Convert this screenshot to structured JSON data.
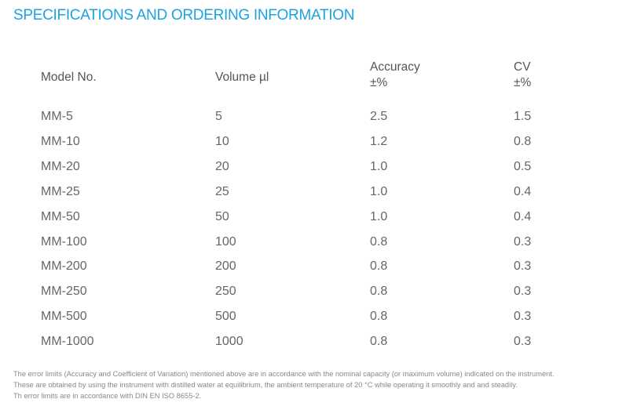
{
  "title": "SPECIFICATIONS AND ORDERING INFORMATION",
  "headers": {
    "model": "Model No.",
    "volume": "Volume µl",
    "accuracy": "Accuracy",
    "accuracy_unit": "±%",
    "cv": "CV",
    "cv_unit": "±%"
  },
  "rows": [
    {
      "model": "MM-5",
      "volume": "5",
      "accuracy": "2.5",
      "cv": "1.5"
    },
    {
      "model": "MM-10",
      "volume": "10",
      "accuracy": "1.2",
      "cv": "0.8"
    },
    {
      "model": "MM-20",
      "volume": "20",
      "accuracy": "1.0",
      "cv": "0.5"
    },
    {
      "model": "MM-25",
      "volume": "25",
      "accuracy": "1.0",
      "cv": "0.4"
    },
    {
      "model": "MM-50",
      "volume": "50",
      "accuracy": "1.0",
      "cv": "0.4"
    },
    {
      "model": "MM-100",
      "volume": "100",
      "accuracy": "0.8",
      "cv": "0.3"
    },
    {
      "model": "MM-200",
      "volume": "200",
      "accuracy": "0.8",
      "cv": "0.3"
    },
    {
      "model": "MM-250",
      "volume": "250",
      "accuracy": "0.8",
      "cv": "0.3"
    },
    {
      "model": "MM-500",
      "volume": "500",
      "accuracy": "0.8",
      "cv": "0.3"
    },
    {
      "model": "MM-1000",
      "volume": "1000",
      "accuracy": "0.8",
      "cv": "0.3"
    }
  ],
  "footnotes": [
    "The error limits (Accuracy and Coefficient of Variation) mentioned above are in accordance with the nominal capacity (or maximum volume) indicated on the instrument.",
    "These are obtained by using the instrument with distilled water at equilibrium, the ambient temperature of 20 °C while operating it smoothly and and steadily.",
    "Th error limits are in accordance with DIN EN ISO 8655-2."
  ],
  "colors": {
    "accent": "#1ba3e1"
  }
}
